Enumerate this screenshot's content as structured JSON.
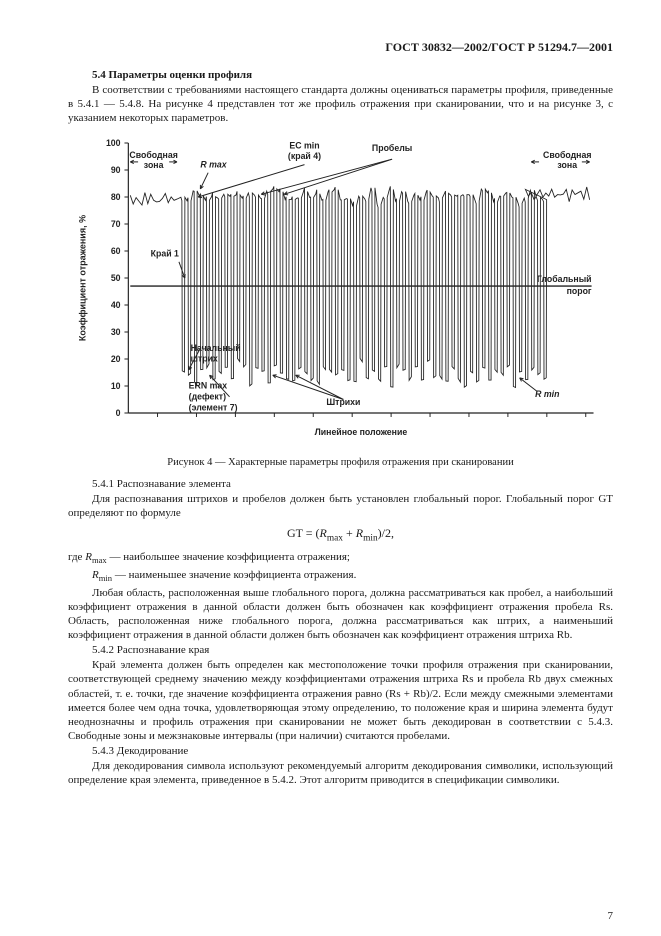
{
  "header": "ГОСТ 30832—2002/ГОСТ Р 51294.7—2001",
  "section_5_4": {
    "title": "5.4  Параметры оценки профиля",
    "intro": "В соответствии с требованиями настоящего стандарта должны оцениваться параметры профиля, приведенные в 5.4.1 — 5.4.8. На рисунке 4 представлен тот же профиль отражения при сканировании, что и на рисунке 3, с указанием некоторых параметров."
  },
  "figure4": {
    "caption": "Рисунок 4 — Характерные параметры профиля отражения при сканировании",
    "y_axis_label": "Коэффициент отражения, %",
    "x_axis_label": "Линейное положение",
    "y_ticks": [
      0,
      10,
      20,
      30,
      40,
      50,
      60,
      70,
      80,
      90,
      100
    ],
    "labels": {
      "free_zone_left": "Свободная зона",
      "free_zone_right": "Свободная зона",
      "r_max": "R max",
      "r_min": "R min",
      "ec_min": "EC min (край 4)",
      "probes": "Пробелы",
      "edge1": "Край 1",
      "start_bar": "Начальный штрих",
      "ern_max": "ERN max (дефект) (элемент 7)",
      "bars": "Штрихи",
      "global_threshold": "Глобальный порог"
    },
    "highs": [
      80,
      78,
      82,
      81,
      79,
      80,
      80,
      82,
      81,
      80,
      79,
      82,
      81,
      78,
      82,
      82,
      81,
      80,
      79,
      80,
      81,
      79,
      80,
      80,
      81,
      82,
      80,
      79,
      78,
      80,
      80,
      82,
      77,
      80,
      82,
      78,
      82,
      79,
      81,
      80,
      82,
      80,
      81,
      82,
      80,
      79,
      82,
      80,
      79,
      82,
      81,
      78,
      80,
      82,
      80,
      79,
      80,
      82,
      81,
      80
    ],
    "lows": [
      16,
      14,
      10,
      15,
      18,
      13,
      15,
      17,
      12,
      19,
      16,
      11,
      17,
      15,
      12,
      18,
      15,
      13,
      11,
      17,
      16,
      13,
      12,
      18,
      15,
      14,
      17,
      13,
      12,
      19,
      14,
      16,
      12,
      18,
      11,
      17,
      15,
      13,
      16,
      11,
      18,
      12,
      15,
      13,
      17,
      14,
      11,
      16,
      13,
      18,
      12,
      15,
      14,
      17,
      11,
      16,
      13,
      15,
      14,
      12
    ],
    "threshold_pct": 47,
    "axis_color": "#222222",
    "grid_color": "#bdbdbd",
    "bg": "#ffffff"
  },
  "sub_5_4_1": {
    "title": "5.4.1  Распознавание элемента",
    "p1": "Для распознавания штрихов и пробелов должен быть установлен глобальный порог. Глобальный порог GT определяют по формуле",
    "formula": "GT = (Rmax + Rmin)/2,",
    "where1_a": "где ",
    "where1_b": " — наибольшее значение коэффициента отражения;",
    "rmax_sym": "Rmax",
    "where2_a": "",
    "rmin_sym": "Rmin",
    "where2_b": " — наименьшее значение коэффициента отражения.",
    "p2": "Любая область, расположенная выше глобального порога, должна рассматриваться как пробел, а наибольший коэффициент отражения в данной области должен быть обозначен как коэффициент отражения пробела Rs. Область, расположенная ниже глобального порога, должна рассматриваться как штрих, а наименьший коэффициент отражения в данной области должен быть обозначен как коэффициент отражения штриха Rb."
  },
  "sub_5_4_2": {
    "title": "5.4.2  Распознавание края",
    "p1": "Край элемента должен быть определен как местоположение точки профиля отражения при сканировании, соответствующей среднему значению между коэффициентами отражения штриха Rs и пробела Rb двух смежных областей, т. е. точки, где значение коэффициента отражения равно (Rs + Rb)/2. Если между смежными элементами имеется более чем одна точка, удовлетворяющая этому определению, то положение края и ширина элемента будут неоднозначны и профиль отражения при сканировании не может быть декодирован в соответствии с 5.4.3. Свободные зоны и межзнаковые интервалы (при наличии) считаются пробелами."
  },
  "sub_5_4_3": {
    "title": "5.4.3  Декодирование",
    "p1": "Для декодирования символа используют рекомендуемый алгоритм декодирования символики, использующий определение края элемента, приведенное в 5.4.2. Этот алгоритм приводится в спецификации символики."
  },
  "page_number": "7"
}
